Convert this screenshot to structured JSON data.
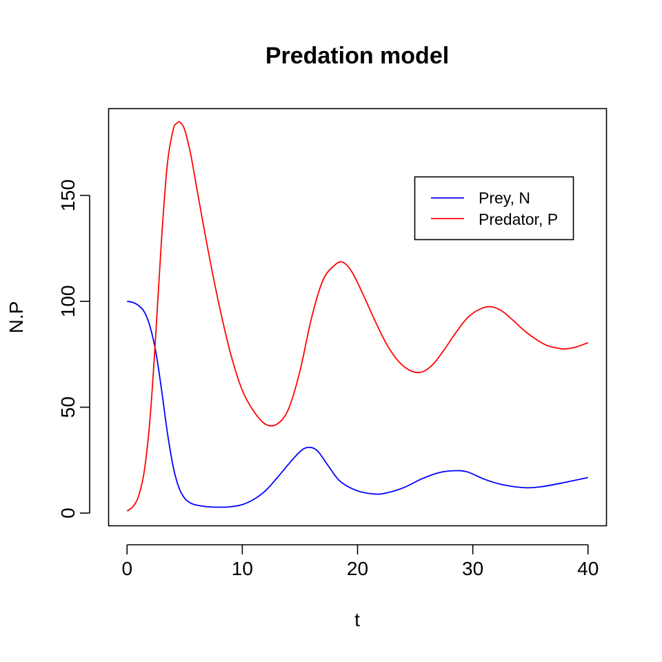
{
  "chart_data": {
    "type": "line",
    "title": "Predation model",
    "xlabel": "t",
    "ylabel": "N.P",
    "xlim": [
      -1.6,
      41.6
    ],
    "ylim": [
      -6,
      191
    ],
    "xticks": [
      0,
      10,
      20,
      30,
      40
    ],
    "yticks": [
      0,
      50,
      100,
      150
    ],
    "grid": false,
    "legend": {
      "position": "top-right"
    },
    "series": [
      {
        "name": "Prey, N",
        "color": "#0000ff",
        "x": [
          0,
          0.5,
          1,
          1.5,
          2,
          2.5,
          3,
          3.5,
          4,
          4.5,
          5,
          5.5,
          6,
          7,
          8,
          9,
          10,
          11,
          12,
          13,
          14,
          15,
          15.7,
          16.5,
          17.5,
          18.5,
          20,
          21.5,
          22.5,
          24,
          25.5,
          27,
          28.3,
          29.5,
          31,
          32.5,
          34.5,
          36,
          38,
          40
        ],
        "values": [
          100,
          99.5,
          98,
          95,
          88,
          76,
          58,
          38,
          22,
          12,
          7,
          4.8,
          3.8,
          3,
          2.8,
          3,
          4,
          6.5,
          10.5,
          16.5,
          23,
          29,
          31,
          29.5,
          22,
          15,
          10.5,
          9,
          9.5,
          12,
          16,
          19,
          20,
          19.5,
          16,
          13.5,
          12,
          12.5,
          14.5,
          16.8
        ]
      },
      {
        "name": "Predator, P",
        "color": "#ff0000",
        "x": [
          0,
          0.5,
          1,
          1.5,
          2,
          2.5,
          3,
          3.5,
          4,
          4.3,
          4.6,
          5,
          5.5,
          6,
          7,
          8,
          9,
          10,
          11,
          12,
          13,
          14,
          15,
          16,
          17,
          18,
          18.7,
          19.5,
          20.5,
          21.5,
          22.5,
          23.5,
          24.5,
          25.5,
          26.5,
          27.5,
          28.5,
          29.5,
          30.5,
          31.5,
          32.5,
          33.5,
          34.5,
          35.5,
          36.5,
          37.5,
          38,
          39,
          40
        ],
        "values": [
          1,
          3,
          8,
          20,
          45,
          85,
          130,
          165,
          181,
          184,
          184.5,
          181,
          170,
          155,
          125,
          98,
          75,
          58,
          48,
          42,
          42,
          49,
          67,
          92,
          110,
          117,
          118.5,
          114,
          103,
          91,
          80,
          72,
          67.5,
          66.5,
          70,
          77,
          85,
          92,
          96,
          97.5,
          95.5,
          91,
          86,
          82,
          79,
          77.8,
          77.5,
          78.5,
          80.5
        ]
      }
    ]
  }
}
